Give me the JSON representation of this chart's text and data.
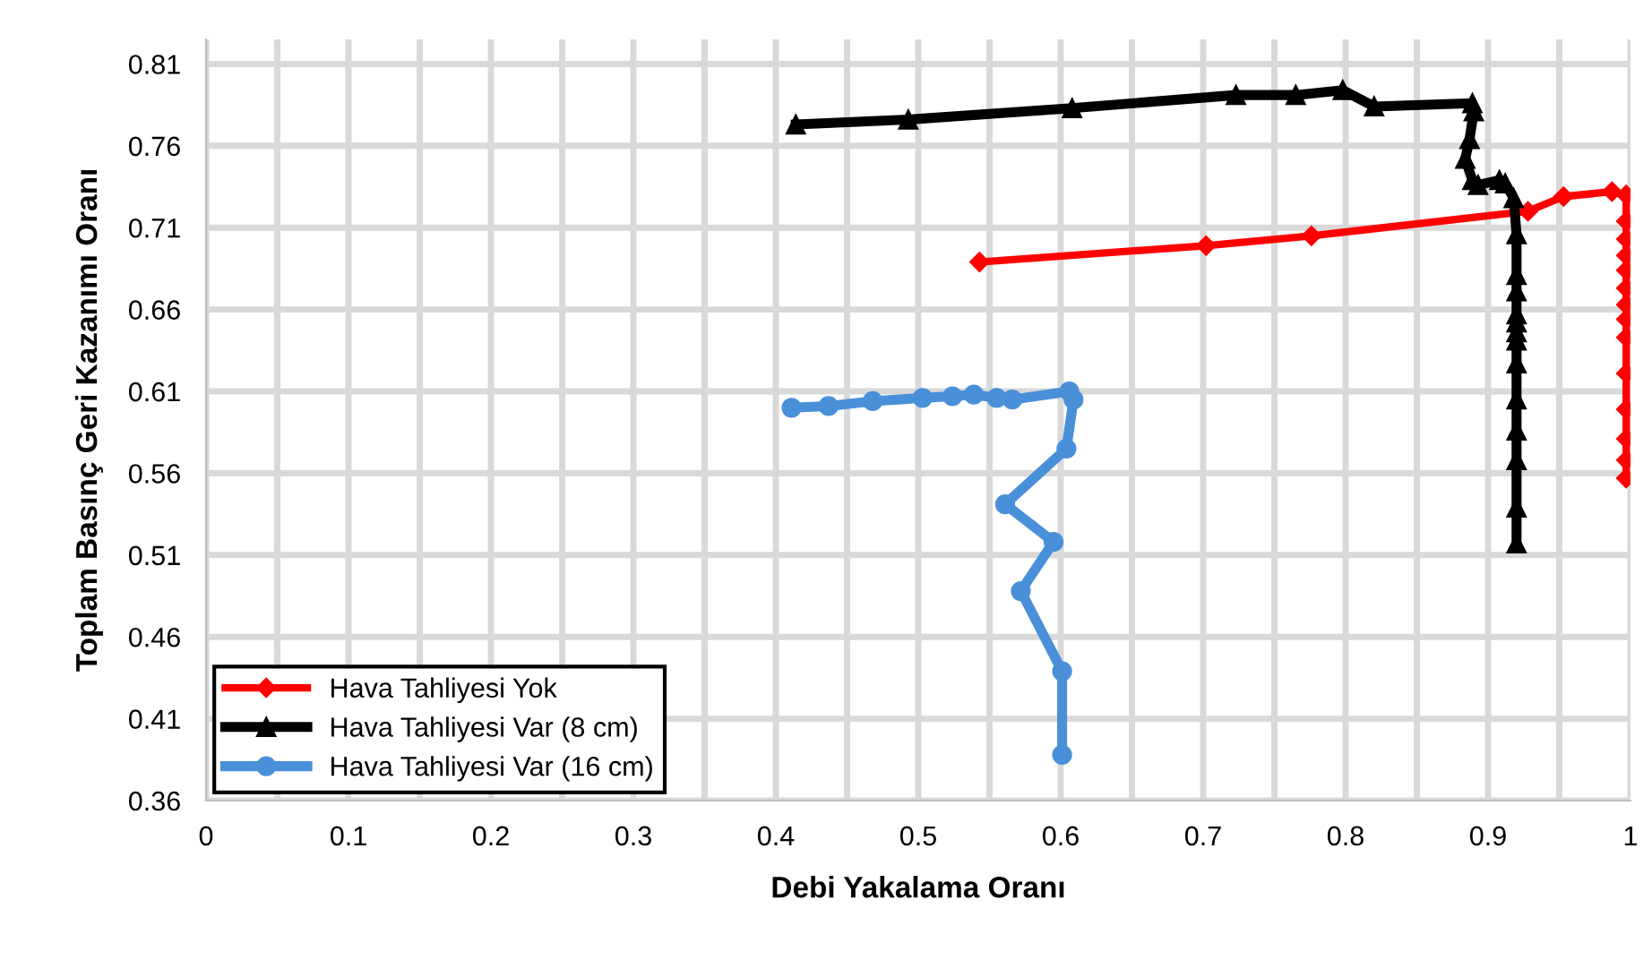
{
  "chart_data": {
    "type": "line",
    "xlabel": "Debi Yakalama Oranı",
    "ylabel": "Toplam Basınç Geri Kazanımı Oranı",
    "xlim": [
      0,
      1
    ],
    "ylim": [
      0.36,
      0.825
    ],
    "xticks": [
      0,
      {
        "value": 0.05,
        "label": null
      },
      0.1,
      {
        "value": 0.15,
        "label": null
      },
      0.2,
      {
        "value": 0.25,
        "label": null
      },
      0.3,
      {
        "value": 0.35,
        "label": null
      },
      0.4,
      {
        "value": 0.45,
        "label": null
      },
      0.5,
      {
        "value": 0.55,
        "label": null
      },
      0.6,
      {
        "value": 0.65,
        "label": null
      },
      0.7,
      {
        "value": 0.75,
        "label": null
      },
      0.8,
      {
        "value": 0.85,
        "label": null
      },
      0.9,
      {
        "value": 0.95,
        "label": null
      },
      1
    ],
    "yticks": [
      0.36,
      0.41,
      0.46,
      0.51,
      0.56,
      0.61,
      0.66,
      0.71,
      0.76,
      0.81
    ],
    "grid": true,
    "legend": "bottom left",
    "line_style": "solid",
    "series": [
      {
        "name": "Hava Tahliyesi Yok",
        "color": "#ff0000",
        "marker": "diamond",
        "x": [
          0.543,
          0.702,
          0.776,
          0.928,
          0.953,
          0.987,
          0.997,
          0.997,
          0.997,
          0.997,
          0.997,
          0.997,
          0.997,
          0.997,
          0.997,
          0.997,
          0.997,
          0.997,
          0.997,
          0.997
        ],
        "values": [
          0.689,
          0.699,
          0.705,
          0.72,
          0.729,
          0.732,
          0.73,
          0.714,
          0.703,
          0.693,
          0.684,
          0.673,
          0.663,
          0.654,
          0.643,
          0.621,
          0.599,
          0.581,
          0.568,
          0.557
        ]
      },
      {
        "name": "Hava Tahliyesi Var (8 cm)",
        "color": "#000000",
        "marker": "triangle",
        "x": [
          0.414,
          0.493,
          0.608,
          0.723,
          0.765,
          0.798,
          0.82,
          0.889,
          0.89,
          0.887,
          0.884,
          0.889,
          0.893,
          0.908,
          0.912,
          0.918,
          0.92,
          0.92,
          0.92,
          0.92,
          0.92,
          0.92,
          0.92,
          0.92,
          0.92,
          0.92,
          0.92,
          0.92,
          0.92
        ],
        "values": [
          0.773,
          0.776,
          0.783,
          0.791,
          0.791,
          0.794,
          0.784,
          0.786,
          0.781,
          0.764,
          0.752,
          0.739,
          0.736,
          0.739,
          0.737,
          0.728,
          0.706,
          0.681,
          0.671,
          0.657,
          0.652,
          0.646,
          0.641,
          0.627,
          0.605,
          0.586,
          0.568,
          0.539,
          0.517
        ]
      },
      {
        "name": "Hava Tahliyesi Var (16 cm)",
        "color": "#4a90d9",
        "marker": "circle",
        "x": [
          0.411,
          0.437,
          0.468,
          0.503,
          0.524,
          0.539,
          0.555,
          0.566,
          0.606,
          0.609,
          0.604,
          0.561,
          0.595,
          0.572,
          0.601,
          0.601
        ],
        "values": [
          0.6,
          0.601,
          0.604,
          0.606,
          0.607,
          0.608,
          0.606,
          0.605,
          0.61,
          0.605,
          0.575,
          0.541,
          0.518,
          0.488,
          0.439,
          0.388
        ]
      }
    ]
  }
}
